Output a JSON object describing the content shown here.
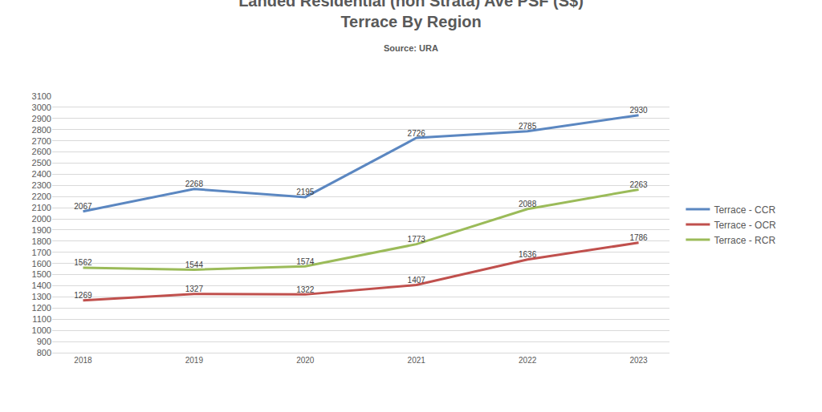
{
  "chart_data": {
    "type": "line",
    "title": "Landed Residential (non Strata) Ave PSF (S$)",
    "subtitle": "Terrace By Region",
    "annotations": [
      "Source: URA"
    ],
    "categories": [
      "2018",
      "2019",
      "2020",
      "2021",
      "2022",
      "2023"
    ],
    "series": [
      {
        "name": "Terrace - CCR",
        "color": "#5b87c1",
        "values": [
          2067,
          2268,
          2195,
          2726,
          2785,
          2930
        ]
      },
      {
        "name": "Terrace - OCR",
        "color": "#c0504d",
        "values": [
          1269,
          1327,
          1322,
          1407,
          1636,
          1786
        ]
      },
      {
        "name": "Terrace - RCR",
        "color": "#9bbb59",
        "values": [
          1562,
          1544,
          1574,
          1773,
          2088,
          2263
        ]
      }
    ],
    "ylim": [
      800,
      3100
    ],
    "yticks": [
      800,
      900,
      1000,
      1100,
      1200,
      1300,
      1400,
      1500,
      1600,
      1700,
      1800,
      1900,
      2000,
      2100,
      2200,
      2300,
      2400,
      2500,
      2600,
      2700,
      2800,
      2900,
      3000,
      3100
    ],
    "grid": true,
    "legend": "right",
    "data_labels": true
  }
}
